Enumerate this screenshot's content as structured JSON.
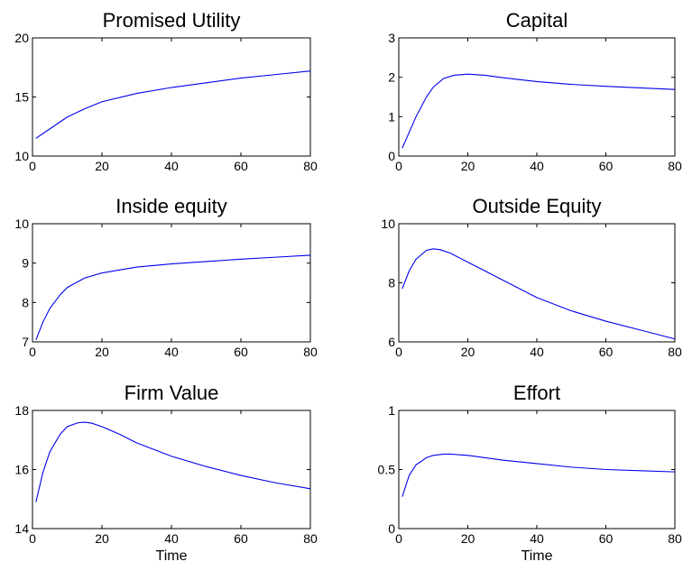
{
  "chart_data": [
    {
      "type": "line",
      "title": "Promised Utility",
      "xlabel": "",
      "ylabel": "",
      "xlim": [
        0,
        80
      ],
      "ylim": [
        10,
        20
      ],
      "xticks": [
        "0",
        "20",
        "40",
        "60",
        "80"
      ],
      "yticks": [
        "10",
        "15",
        "20"
      ],
      "series": [
        {
          "x": [
            1,
            5,
            10,
            15,
            20,
            30,
            40,
            50,
            60,
            70,
            80
          ],
          "y": [
            11.5,
            12.3,
            13.3,
            14.0,
            14.6,
            15.3,
            15.8,
            16.2,
            16.6,
            16.9,
            17.2
          ]
        }
      ]
    },
    {
      "type": "line",
      "title": "Capital",
      "xlabel": "",
      "ylabel": "",
      "xlim": [
        0,
        80
      ],
      "ylim": [
        0,
        3
      ],
      "xticks": [
        "0",
        "20",
        "40",
        "60",
        "80"
      ],
      "yticks": [
        "0",
        "1",
        "2",
        "3"
      ],
      "series": [
        {
          "x": [
            1,
            3,
            5,
            8,
            10,
            13,
            16,
            20,
            25,
            30,
            40,
            50,
            60,
            70,
            80
          ],
          "y": [
            0.2,
            0.6,
            1.0,
            1.5,
            1.75,
            1.97,
            2.05,
            2.08,
            2.05,
            1.99,
            1.89,
            1.82,
            1.77,
            1.73,
            1.69
          ]
        }
      ]
    },
    {
      "type": "line",
      "title": "Inside equity",
      "xlabel": "",
      "ylabel": "",
      "xlim": [
        0,
        80
      ],
      "ylim": [
        7,
        10
      ],
      "xticks": [
        "0",
        "20",
        "40",
        "60",
        "80"
      ],
      "yticks": [
        "7",
        "8",
        "9",
        "10"
      ],
      "series": [
        {
          "x": [
            1,
            3,
            5,
            8,
            10,
            15,
            20,
            30,
            40,
            50,
            60,
            70,
            80
          ],
          "y": [
            7.05,
            7.5,
            7.85,
            8.2,
            8.38,
            8.62,
            8.75,
            8.9,
            8.98,
            9.04,
            9.1,
            9.15,
            9.2
          ]
        }
      ]
    },
    {
      "type": "line",
      "title": "Outside Equity",
      "xlabel": "",
      "ylabel": "",
      "xlim": [
        0,
        80
      ],
      "ylim": [
        6,
        10
      ],
      "xticks": [
        "0",
        "20",
        "40",
        "60",
        "80"
      ],
      "yticks": [
        "6",
        "8",
        "10"
      ],
      "series": [
        {
          "x": [
            1,
            3,
            5,
            8,
            10,
            12,
            15,
            20,
            25,
            30,
            40,
            50,
            60,
            70,
            80
          ],
          "y": [
            7.8,
            8.4,
            8.8,
            9.1,
            9.15,
            9.12,
            9.0,
            8.7,
            8.4,
            8.1,
            7.5,
            7.05,
            6.7,
            6.4,
            6.1
          ]
        }
      ]
    },
    {
      "type": "line",
      "title": "Firm Value",
      "xlabel": "Time",
      "ylabel": "",
      "xlim": [
        0,
        80
      ],
      "ylim": [
        14,
        18
      ],
      "xticks": [
        "0",
        "20",
        "40",
        "60",
        "80"
      ],
      "yticks": [
        "14",
        "16",
        "18"
      ],
      "series": [
        {
          "x": [
            1,
            3,
            5,
            8,
            10,
            13,
            15,
            17,
            20,
            25,
            30,
            40,
            50,
            60,
            70,
            80
          ],
          "y": [
            14.9,
            15.9,
            16.6,
            17.2,
            17.45,
            17.58,
            17.6,
            17.57,
            17.45,
            17.2,
            16.9,
            16.45,
            16.1,
            15.8,
            15.55,
            15.35
          ]
        }
      ]
    },
    {
      "type": "line",
      "title": "Effort",
      "xlabel": "Time",
      "ylabel": "",
      "xlim": [
        0,
        80
      ],
      "ylim": [
        0,
        1
      ],
      "xticks": [
        "0",
        "20",
        "40",
        "60",
        "80"
      ],
      "yticks": [
        "0",
        "0.5",
        "1"
      ],
      "series": [
        {
          "x": [
            1,
            3,
            5,
            8,
            10,
            13,
            15,
            20,
            30,
            40,
            50,
            60,
            70,
            80
          ],
          "y": [
            0.27,
            0.45,
            0.54,
            0.6,
            0.62,
            0.63,
            0.63,
            0.62,
            0.58,
            0.55,
            0.52,
            0.5,
            0.49,
            0.48
          ]
        }
      ]
    }
  ]
}
